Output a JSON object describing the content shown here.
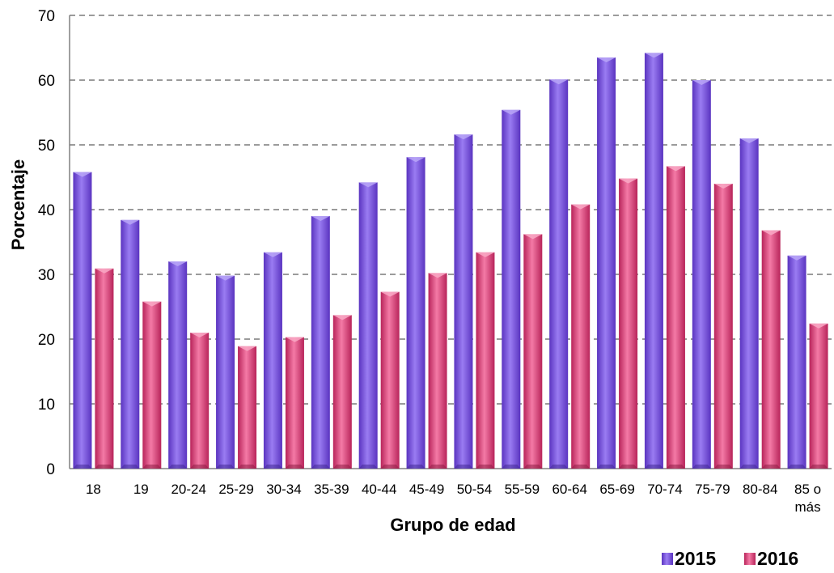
{
  "chart_data": {
    "type": "bar",
    "xlabel": "Grupo de edad",
    "ylabel": "Porcentaje",
    "ylim": [
      0,
      70
    ],
    "yticks": [
      0,
      10,
      20,
      30,
      40,
      50,
      60,
      70
    ],
    "grid": "horizontal-dashed",
    "legend_position": "bottom-right",
    "categories": [
      "18",
      "19",
      "20-24",
      "25-29",
      "30-34",
      "35-39",
      "40-44",
      "45-49",
      "50-54",
      "55-59",
      "60-64",
      "65-69",
      "70-74",
      "75-79",
      "80-84",
      "85 o más"
    ],
    "series": [
      {
        "name": "2015",
        "color": "#7b52e0",
        "values": [
          45.8,
          38.4,
          32.0,
          29.8,
          33.4,
          39.0,
          44.2,
          48.1,
          51.6,
          55.4,
          60.1,
          63.5,
          64.2,
          60.0,
          51.0,
          32.9
        ]
      },
      {
        "name": "2016",
        "color": "#e0457a",
        "values": [
          30.9,
          25.8,
          21.0,
          18.9,
          20.3,
          23.7,
          27.3,
          30.2,
          33.4,
          36.2,
          40.8,
          44.8,
          46.7,
          44.0,
          36.8,
          22.4
        ]
      }
    ]
  }
}
